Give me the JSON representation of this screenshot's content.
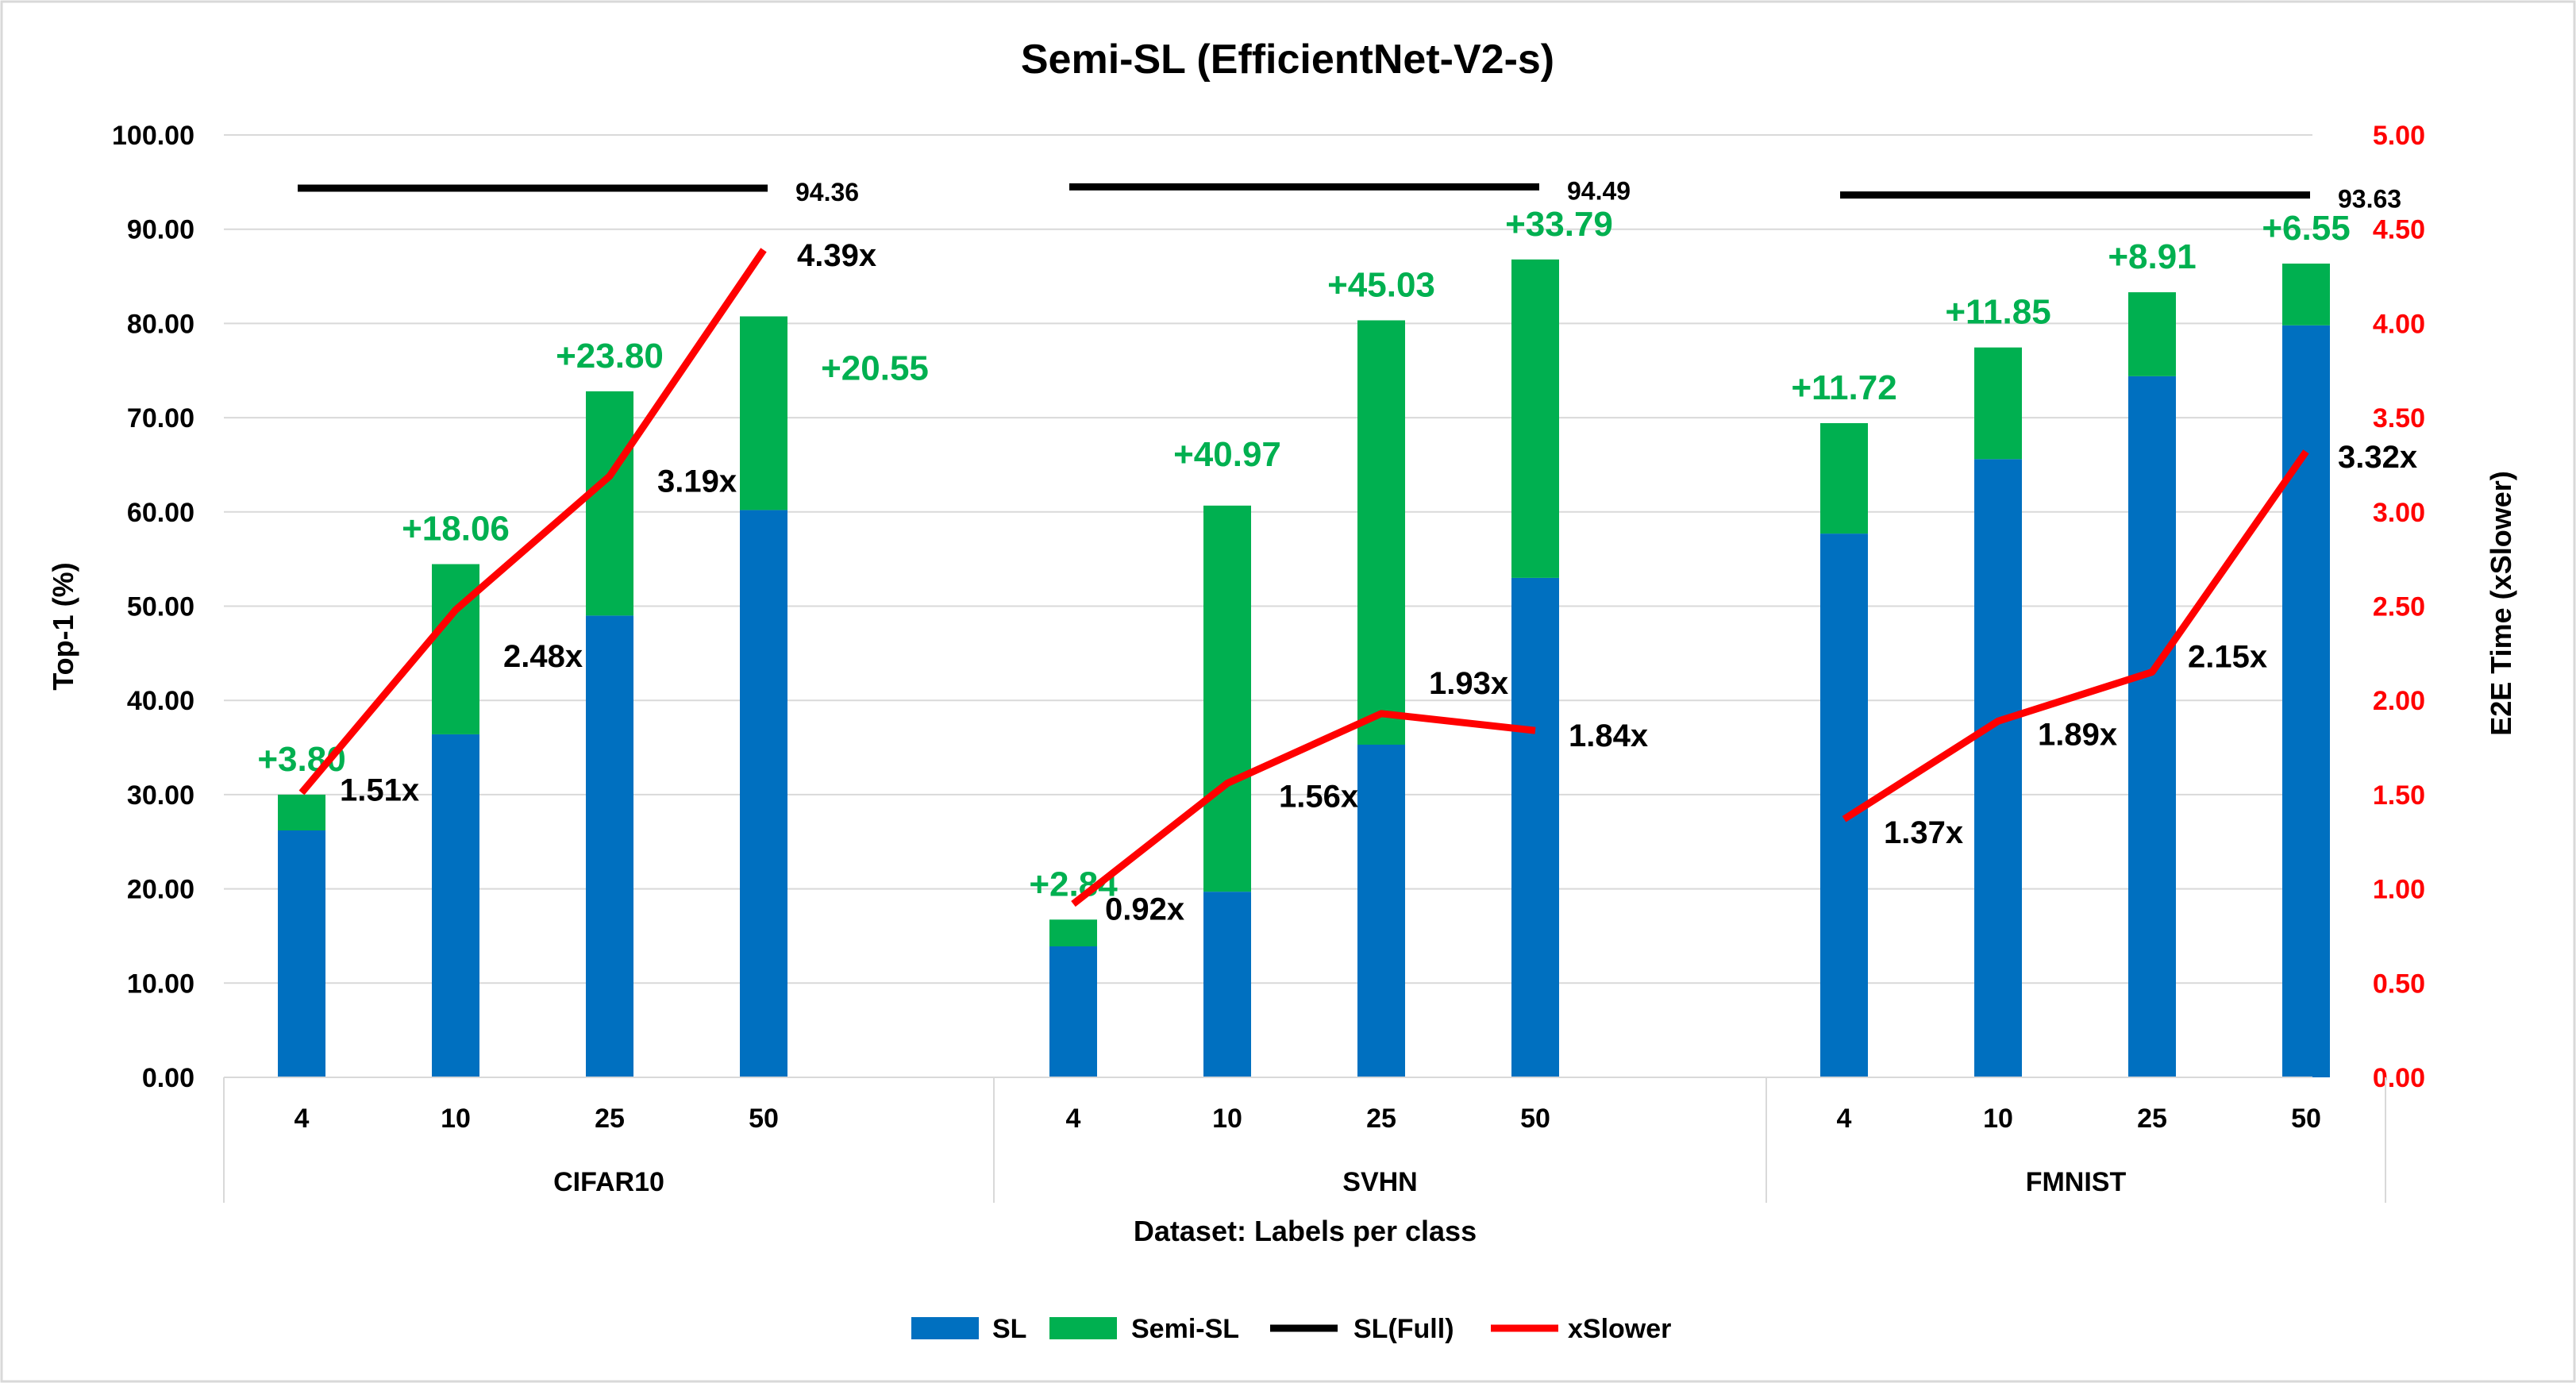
{
  "chart_data": {
    "type": "bar",
    "title": "Semi-SL (EfficientNet-V2-s)",
    "xlabel": "Dataset: Labels per class",
    "ylabel": "Top-1 (%)",
    "y2label": "E2E Time (xSlower)",
    "ylim": [
      0,
      100
    ],
    "y2lim": [
      0,
      5
    ],
    "yticks": [
      "0.00",
      "10.00",
      "20.00",
      "30.00",
      "40.00",
      "50.00",
      "60.00",
      "70.00",
      "80.00",
      "90.00",
      "100.00"
    ],
    "y2ticks": [
      "0.00",
      "0.50",
      "1.00",
      "1.50",
      "2.00",
      "2.50",
      "3.00",
      "3.50",
      "4.00",
      "4.50",
      "5.00"
    ],
    "grid": true,
    "legend_position": "bottom",
    "colors": {
      "sl": "#0070c0",
      "semi": "#00b050",
      "full": "#000000",
      "slower": "#ff0000",
      "gain_text": "#00b050",
      "right_axis": "#ff0000"
    },
    "groups": [
      {
        "name": "CIFAR10",
        "categories": [
          "4",
          "10",
          "25",
          "50"
        ],
        "sl": [
          26.2,
          36.4,
          49.0,
          60.2
        ],
        "semi_gain": [
          3.8,
          18.06,
          23.8,
          20.55
        ],
        "gain_labels": [
          "+3.80",
          "+18.06",
          "+23.80",
          "+20.55"
        ],
        "sl_full": 94.36,
        "sl_full_label": "94.36",
        "xslower": [
          1.51,
          2.48,
          3.19,
          4.39
        ],
        "xslower_labels": [
          "1.51x",
          "2.48x",
          "3.19x",
          "4.39x"
        ]
      },
      {
        "name": "SVHN",
        "categories": [
          "4",
          "10",
          "25",
          "50"
        ],
        "sl": [
          13.9,
          19.7,
          35.3,
          53.0
        ],
        "semi_gain": [
          2.84,
          40.97,
          45.03,
          33.79
        ],
        "gain_labels": [
          "+2.84",
          "+40.97",
          "+45.03",
          "+33.79"
        ],
        "sl_full": 94.49,
        "sl_full_label": "94.49",
        "xslower": [
          0.92,
          1.56,
          1.93,
          1.84
        ],
        "xslower_labels": [
          "0.92x",
          "1.56x",
          "1.93x",
          "1.84x"
        ]
      },
      {
        "name": "FMNIST",
        "categories": [
          "4",
          "10",
          "25",
          "50"
        ],
        "sl": [
          57.7,
          65.6,
          74.4,
          79.8
        ],
        "semi_gain": [
          11.72,
          11.85,
          8.91,
          6.55
        ],
        "gain_labels": [
          "+11.72",
          "+11.85",
          "+8.91",
          "+6.55"
        ],
        "sl_full": 93.63,
        "sl_full_label": "93.63",
        "xslower": [
          1.37,
          1.89,
          2.15,
          3.32
        ],
        "xslower_labels": [
          "1.37x",
          "1.89x",
          "2.15x",
          "3.32x"
        ]
      }
    ],
    "series": [
      {
        "name": "SL"
      },
      {
        "name": "Semi-SL"
      },
      {
        "name": "SL(Full)"
      },
      {
        "name": "xSlower"
      }
    ]
  }
}
